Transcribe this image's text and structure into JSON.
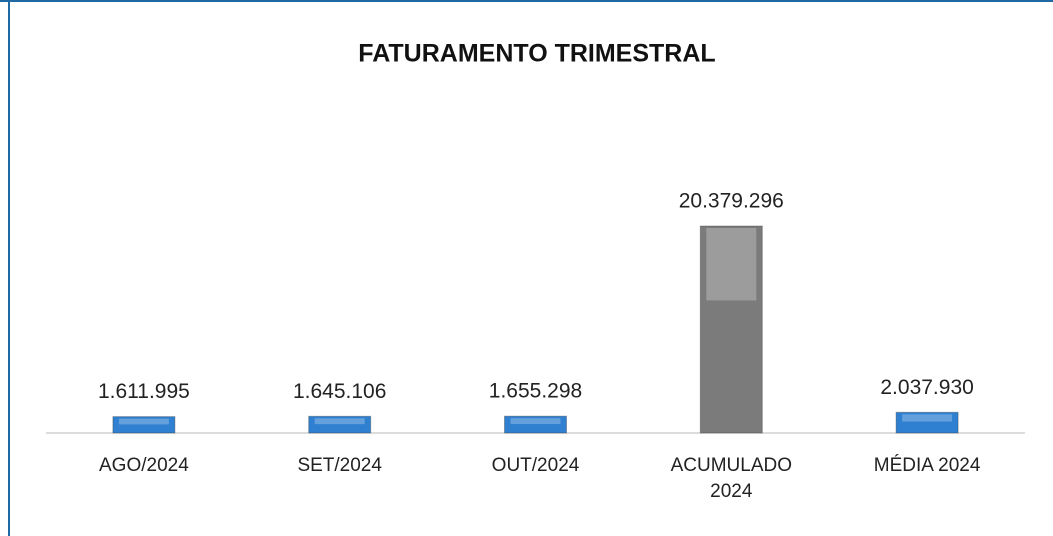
{
  "chart_data": {
    "type": "bar",
    "title": "FATURAMENTO TRIMESTRAL",
    "categories": [
      "AGO/2024",
      "SET/2024",
      "OUT/2024",
      "ACUMULADO 2024",
      "MÉDIA 2024"
    ],
    "values": [
      1611995,
      1645106,
      1655298,
      20379296,
      2037930
    ],
    "value_labels": [
      "1.611.995",
      "1.645.106",
      "1.655.298",
      "20.379.296",
      "2.037.930"
    ],
    "colors": [
      "#2f80d0",
      "#2f80d0",
      "#2f80d0",
      "#7b7b7b",
      "#2f80d0"
    ]
  }
}
